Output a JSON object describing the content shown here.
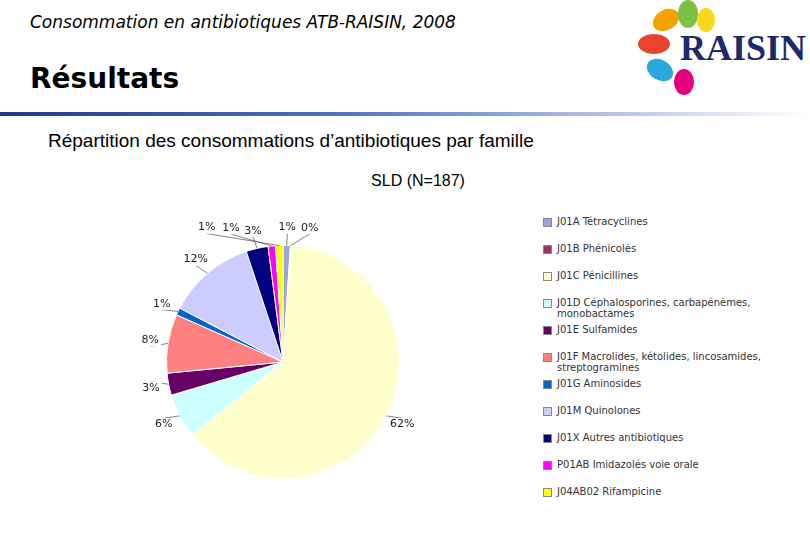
{
  "header": {
    "title": "Consommation en antibiotiques ATB-RAISIN, 2008",
    "logo": "RAISIN",
    "section": "Résultats"
  },
  "chart_data": {
    "type": "pie",
    "title": "Répartition des consommations d’antibiotiques par famille",
    "subtitle": "SLD (N=187)",
    "categories": [
      "J01A Tétracyclines",
      "J01B Phénicolés",
      "J01C Pénicillines",
      "J01D Céphalosporines, carbapénèmes, monobactames",
      "J01E Sulfamides",
      "J01F Macrolides, kétolides, lincosamides, streptogramines",
      "J01G Aminosides",
      "J01M Quinolones",
      "J01X Autres antibiotiques",
      "P01AB Imidazolés voie orale",
      "J04AB02 Rifampicine"
    ],
    "values": [
      1,
      0,
      62,
      6,
      3,
      8,
      1,
      12,
      3,
      1,
      1
    ],
    "value_labels": [
      "1%",
      "0%",
      "62%",
      "6%",
      "3%",
      "8%",
      "1%",
      "12%",
      "3%",
      "1%",
      "1%"
    ],
    "colors": [
      "#99a8d8",
      "#993366",
      "#ffffcc",
      "#ccffff",
      "#660066",
      "#ff8080",
      "#0066cc",
      "#ccccff",
      "#000080",
      "#ff00ff",
      "#ffff00"
    ],
    "data_labels": true,
    "legend": "right"
  }
}
